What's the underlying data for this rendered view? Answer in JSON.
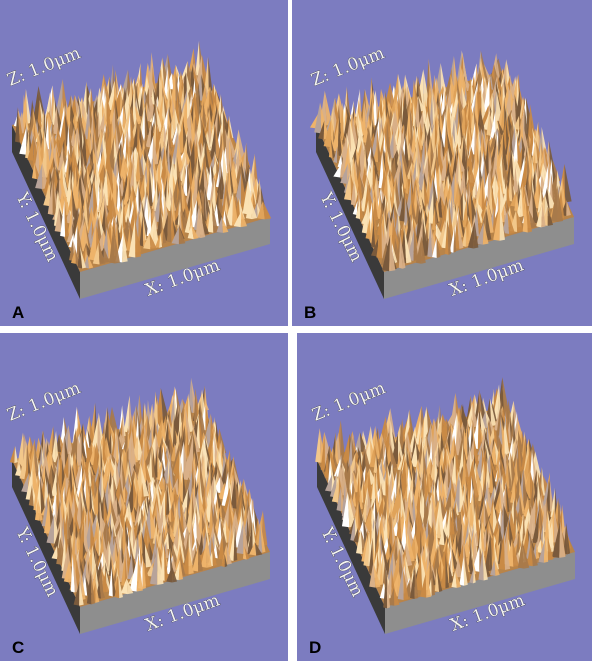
{
  "panels": [
    {
      "label": "A",
      "z_axis": "Z: 1.0μm",
      "y_axis": "Y: 1.0μm",
      "x_axis": "X: 1.0μm"
    },
    {
      "label": "B",
      "z_axis": "Z: 1.0μm",
      "y_axis": "Y: 1.0μm",
      "x_axis": "X: 1.0μm"
    },
    {
      "label": "C",
      "z_axis": "Z: 1.0μm",
      "y_axis": "Y: 1.0μm",
      "x_axis": "X: 1.0μm"
    },
    {
      "label": "D",
      "z_axis": "Z: 1.0μm",
      "y_axis": "Y: 1.0μm",
      "x_axis": "X: 1.0μm"
    }
  ]
}
